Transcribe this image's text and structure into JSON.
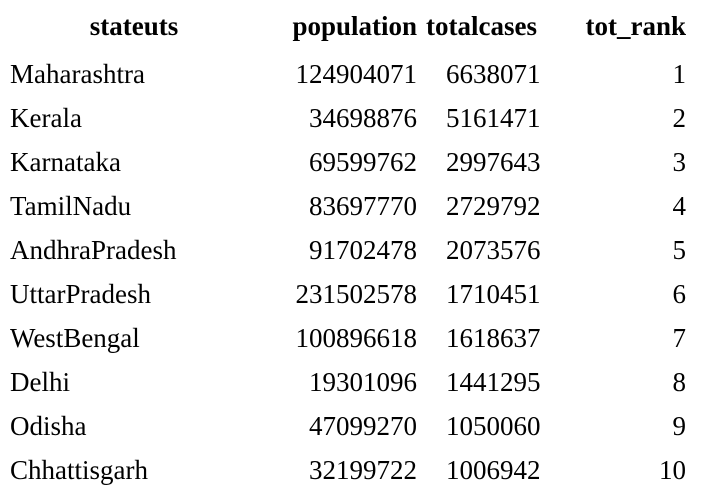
{
  "table": {
    "headers": [
      "stateuts",
      "population",
      "totalcases",
      "tot_rank"
    ],
    "rows": [
      [
        "Maharashtra",
        "124904071",
        "6638071",
        "1"
      ],
      [
        "Kerala",
        "34698876",
        "5161471",
        "2"
      ],
      [
        "Karnataka",
        "69599762",
        "2997643",
        "3"
      ],
      [
        "TamilNadu",
        "83697770",
        "2729792",
        "4"
      ],
      [
        "AndhraPradesh",
        "91702478",
        "2073576",
        "5"
      ],
      [
        "UttarPradesh",
        "231502578",
        "1710451",
        "6"
      ],
      [
        "WestBengal",
        "100896618",
        "1618637",
        "7"
      ],
      [
        "Delhi",
        "19301096",
        "1441295",
        "8"
      ],
      [
        "Odisha",
        "47099270",
        "1050060",
        "9"
      ],
      [
        "Chhattisgarh",
        "32199722",
        "1006942",
        "10"
      ]
    ]
  }
}
